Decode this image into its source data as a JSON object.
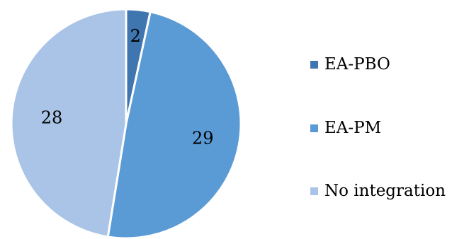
{
  "chart_data": {
    "type": "pie",
    "title": "",
    "categories": [
      "EA-PBO",
      "EA-PM",
      "No integration"
    ],
    "values": [
      2,
      29,
      28
    ],
    "colors": [
      "#3f76af",
      "#5b9bd5",
      "#a9c4e6"
    ],
    "legend_position": "right",
    "data_labels": [
      "2",
      "29",
      "28"
    ]
  }
}
